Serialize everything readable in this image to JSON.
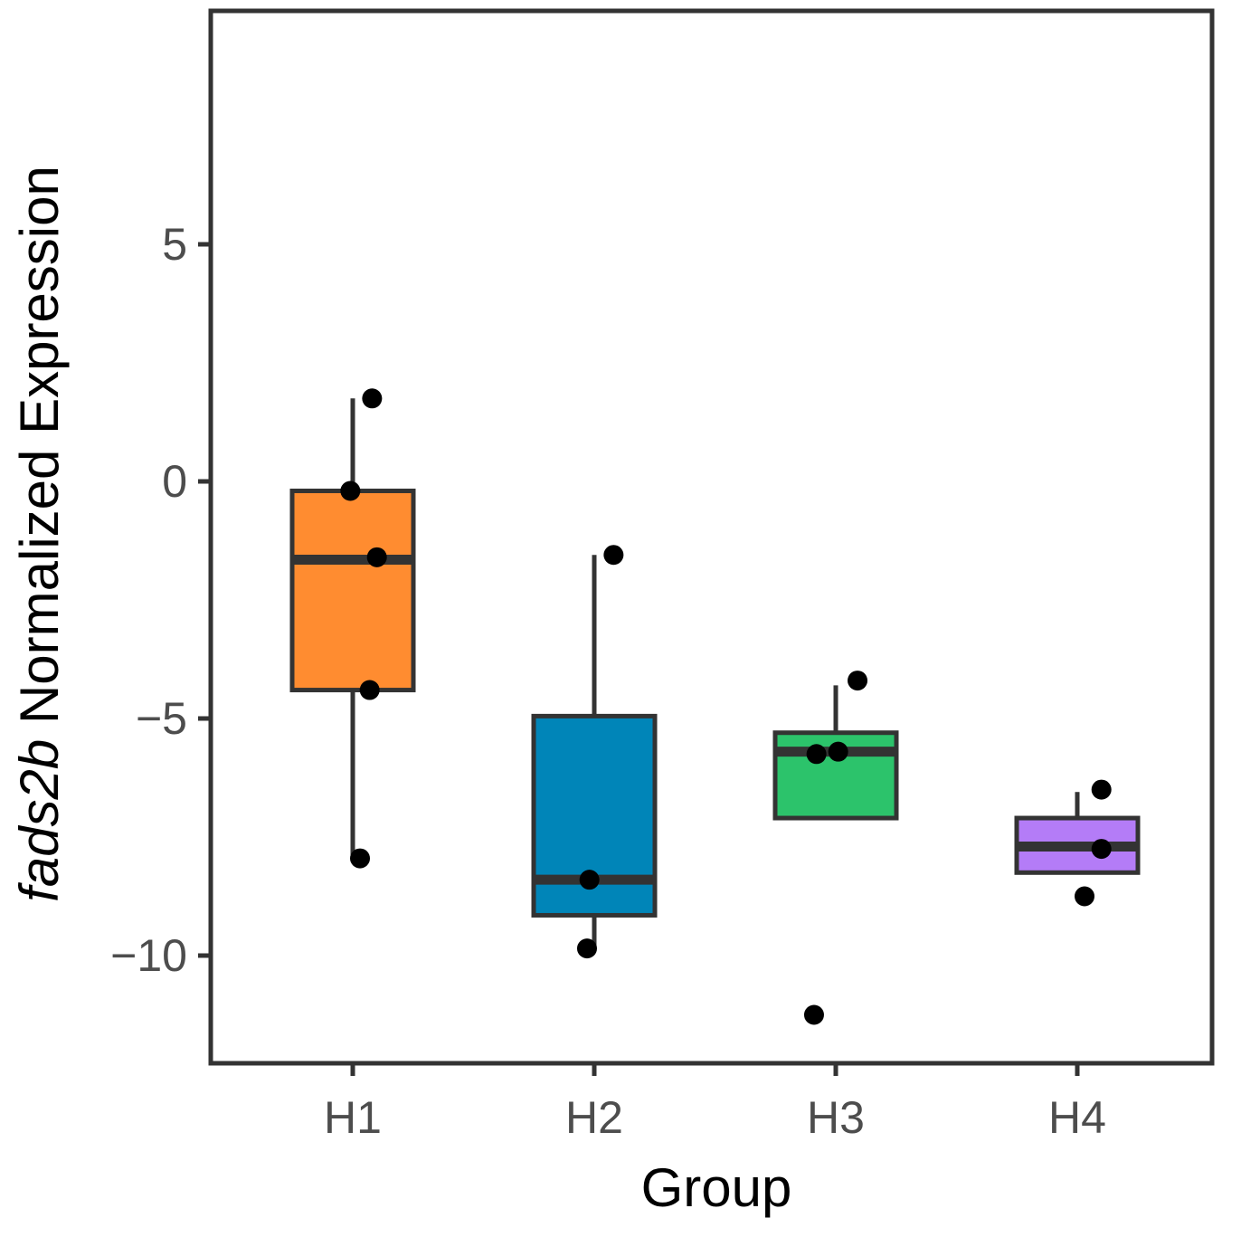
{
  "chart_data": {
    "type": "boxplot",
    "title": "",
    "xlabel": "Group",
    "ylabel_italic": "fads2b",
    "ylabel_rest": " Normalized Expression",
    "categories": [
      "H1",
      "H2",
      "H3",
      "H4"
    ],
    "colors": [
      "#FF8C30",
      "#0085B8",
      "#2CC36B",
      "#B47CF7"
    ],
    "ylim": [
      -12,
      10
    ],
    "yticks": [
      5,
      0,
      -5,
      -10
    ],
    "ytick_labels": [
      "5",
      "0",
      "−5",
      "−10"
    ],
    "boxes": [
      {
        "group": "H1",
        "q1": -4.4,
        "median": -1.65,
        "q3": -0.2,
        "whisker_low": -7.95,
        "whisker_high": 1.75
      },
      {
        "group": "H2",
        "q1": -9.15,
        "median": -8.4,
        "q3": -4.95,
        "whisker_low": -9.85,
        "whisker_high": -1.55
      },
      {
        "group": "H3",
        "q1": -7.1,
        "median": -5.7,
        "q3": -5.3,
        "whisker_low": -7.1,
        "whisker_high": -4.3
      },
      {
        "group": "H4",
        "q1": -8.25,
        "median": -7.7,
        "q3": -7.1,
        "whisker_low": -8.25,
        "whisker_high": -6.55
      }
    ],
    "points": [
      {
        "group": "H1",
        "jitter": 0.08,
        "y": 1.75
      },
      {
        "group": "H1",
        "jitter": -0.01,
        "y": -0.2
      },
      {
        "group": "H1",
        "jitter": 0.1,
        "y": -1.6
      },
      {
        "group": "H1",
        "jitter": 0.07,
        "y": -4.4
      },
      {
        "group": "H1",
        "jitter": 0.03,
        "y": -7.95
      },
      {
        "group": "H2",
        "jitter": 0.08,
        "y": -1.55
      },
      {
        "group": "H2",
        "jitter": -0.02,
        "y": -8.4
      },
      {
        "group": "H2",
        "jitter": -0.03,
        "y": -9.85
      },
      {
        "group": "H3",
        "jitter": 0.09,
        "y": -4.2
      },
      {
        "group": "H3",
        "jitter": -0.08,
        "y": -5.75
      },
      {
        "group": "H3",
        "jitter": 0.01,
        "y": -5.7
      },
      {
        "group": "H3",
        "jitter": -0.09,
        "y": -11.25
      },
      {
        "group": "H4",
        "jitter": 0.1,
        "y": -6.5
      },
      {
        "group": "H4",
        "jitter": 0.1,
        "y": -7.75
      },
      {
        "group": "H4",
        "jitter": 0.03,
        "y": -8.75
      }
    ],
    "grid": false,
    "legend": "none"
  }
}
